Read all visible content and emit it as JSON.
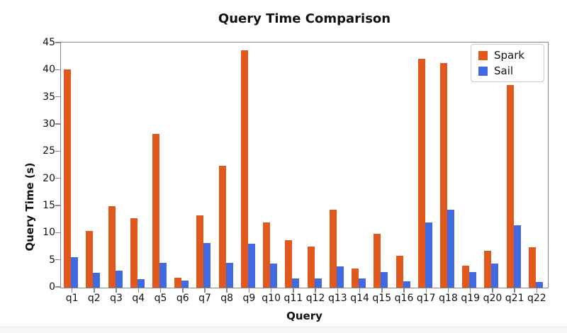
{
  "title": "Query Time Comparison",
  "chart_data": {
    "type": "bar",
    "title": "Query Time Comparison",
    "xlabel": "Query",
    "ylabel": "Query Time (s)",
    "ylim": [
      0,
      45
    ],
    "yticks": [
      0,
      5,
      10,
      15,
      20,
      25,
      30,
      35,
      40,
      45
    ],
    "grid": false,
    "legend_position": "upper right",
    "categories": [
      "q1",
      "q2",
      "q3",
      "q4",
      "q5",
      "q6",
      "q7",
      "q8",
      "q9",
      "q10",
      "q11",
      "q12",
      "q13",
      "q14",
      "q15",
      "q16",
      "q17",
      "q18",
      "q19",
      "q20",
      "q21",
      "q22"
    ],
    "series": [
      {
        "name": "Spark",
        "color": "#E0581C",
        "values": [
          40.2,
          10.4,
          15.0,
          12.8,
          28.3,
          1.8,
          13.3,
          22.4,
          43.7,
          12.0,
          8.7,
          7.6,
          14.4,
          3.5,
          9.9,
          5.9,
          42.1,
          41.4,
          4.0,
          6.8,
          37.3,
          7.5
        ]
      },
      {
        "name": "Sail",
        "color": "#4169E1",
        "values": [
          5.6,
          2.8,
          3.1,
          1.6,
          4.6,
          1.3,
          8.2,
          4.6,
          8.1,
          4.4,
          1.7,
          1.7,
          3.9,
          1.7,
          2.9,
          1.2,
          12.0,
          14.4,
          2.9,
          4.5,
          11.5,
          1.0
        ]
      }
    ],
    "axis_color": "#888888",
    "background_color": "#ffffff"
  }
}
